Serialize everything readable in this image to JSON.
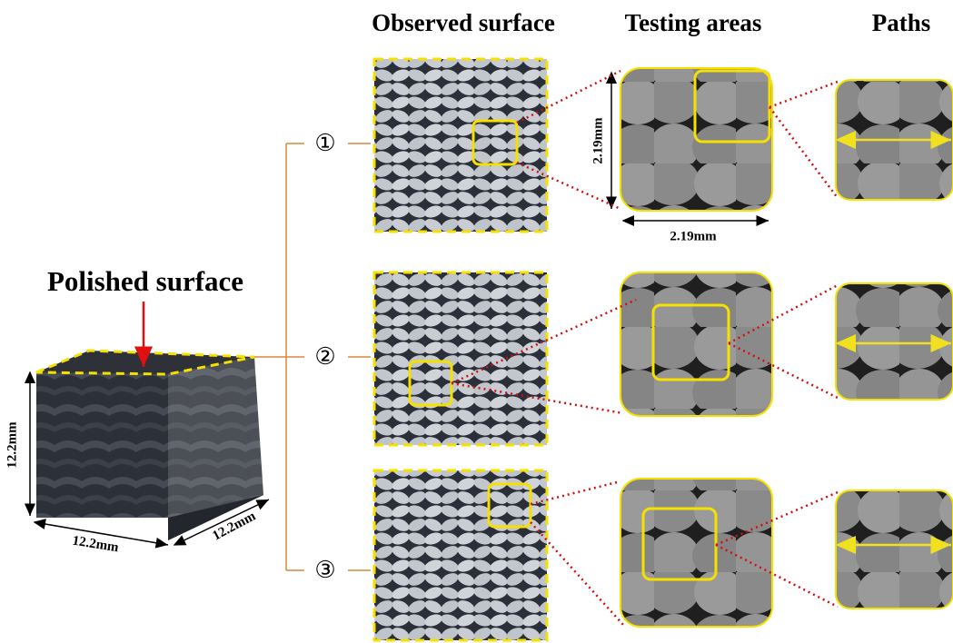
{
  "headers": [
    "Observed surface",
    "Testing areas",
    "Paths"
  ],
  "cube": {
    "label": "Polished surface",
    "height": "12.2mm",
    "width": "12.2mm",
    "depth": "12.2mm"
  },
  "rows": [
    {
      "label": "①"
    },
    {
      "label": "②"
    },
    {
      "label": "③"
    }
  ],
  "testing_area": {
    "height": "2.19mm",
    "width": "2.19mm"
  }
}
